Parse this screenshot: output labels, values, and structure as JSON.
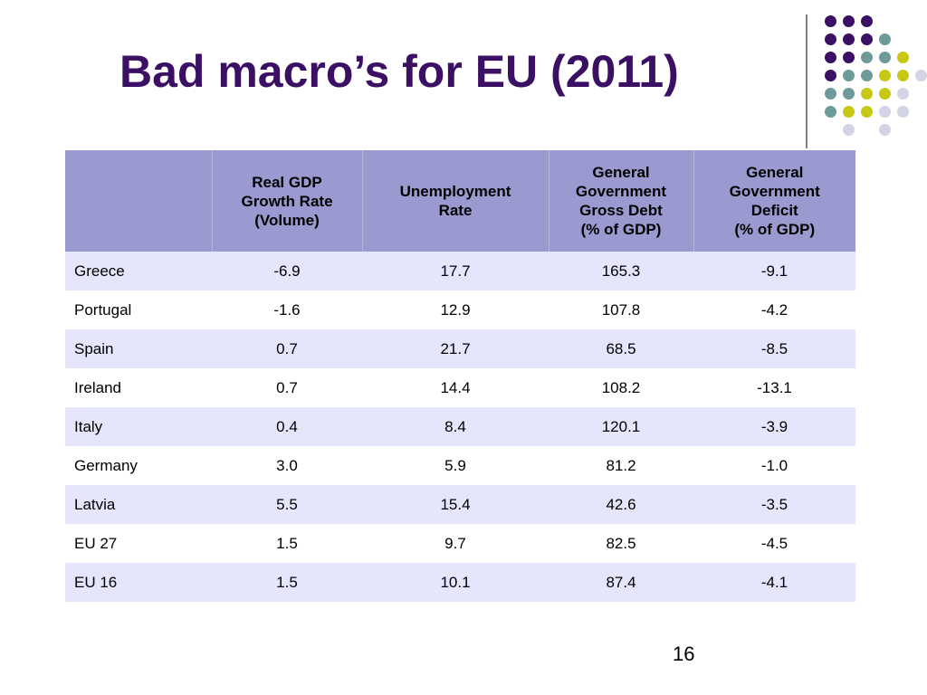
{
  "slide": {
    "title": "Bad macro’s for EU (2011)",
    "page_number": "16"
  },
  "table": {
    "headers": [
      [],
      [
        "Real GDP",
        "Growth Rate",
        "(Volume)"
      ],
      [
        "Unemployment",
        "Rate"
      ],
      [
        "General",
        "Government",
        "Gross Debt",
        "(% of GDP)"
      ],
      [
        "General",
        "Government",
        "Deficit",
        "(% of GDP)"
      ]
    ],
    "rows": [
      [
        "Greece",
        "-6.9",
        "17.7",
        "165.3",
        "-9.1"
      ],
      [
        "Portugal",
        "-1.6",
        "12.9",
        "107.8",
        "-4.2"
      ],
      [
        "Spain",
        "0.7",
        "21.7",
        "68.5",
        "-8.5"
      ],
      [
        "Ireland",
        "0.7",
        "14.4",
        "108.2",
        "-13.1"
      ],
      [
        "Italy",
        "0.4",
        "8.4",
        "120.1",
        "-3.9"
      ],
      [
        "Germany",
        "3.0",
        "5.9",
        "81.2",
        "-1.0"
      ],
      [
        "Latvia",
        "5.5",
        "15.4",
        "42.6",
        "-3.5"
      ],
      [
        "EU 27",
        "1.5",
        "9.7",
        "82.5",
        "-4.5"
      ],
      [
        "EU 16",
        "1.5",
        "10.1",
        "87.4",
        "-4.1"
      ]
    ]
  },
  "colors": {
    "title": "#3b0f63",
    "header_bg": "#9a9ad0",
    "row_alt_bg": "#e5e5fb",
    "dot_purple": "#3b0f63",
    "dot_teal": "#6e9a9a",
    "dot_olive": "#c8c814",
    "dot_lavender": "#d3d3e6"
  }
}
